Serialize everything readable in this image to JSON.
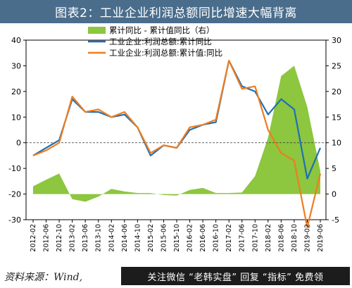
{
  "page": {
    "title": "图表2：工业企业利润总额同比增速大幅背离",
    "source": "资料来源：Wind,",
    "promo": "关注微信 “老韩实盘” 回复 “指标” 免费领"
  },
  "colors": {
    "area": "#8dc63f",
    "yoy": "#1f6fb5",
    "cum": "#ee7d1f",
    "title_bg": "#4a6d8c"
  },
  "chart_data": {
    "type": "line",
    "x": [
      "2012-02",
      "2012-06",
      "2012-10",
      "2013-02",
      "2013-06",
      "2013-10",
      "2014-02",
      "2014-06",
      "2014-10",
      "2015-02",
      "2015-06",
      "2015-10",
      "2016-02",
      "2016-06",
      "2016-10",
      "2017-02",
      "2017-06",
      "2017-10",
      "2018-02",
      "2018-06",
      "2018-10",
      "2019-02",
      "2019-06"
    ],
    "ylim_left": [
      -30,
      40
    ],
    "ylim_right": [
      -5,
      30
    ],
    "yticks_left": [
      -30,
      -20,
      -10,
      0,
      10,
      20,
      30,
      40
    ],
    "yticks_right": [
      -5,
      0,
      5,
      10,
      15,
      20,
      25,
      30
    ],
    "legend": {
      "position": "top"
    },
    "series": [
      {
        "name": "累计同比 - 累计值同比（右）",
        "kind": "area",
        "axis": "right",
        "values": [
          1.5,
          2.8,
          4,
          -1,
          -1.5,
          -0.5,
          1,
          0.5,
          0.2,
          0.2,
          -0.2,
          -0.3,
          0.8,
          1.2,
          0.2,
          0.2,
          0.3,
          3.5,
          11,
          23,
          25,
          17,
          4.5
        ]
      },
      {
        "name": "工业企业:利润总额:累计同比",
        "kind": "line",
        "axis": "left",
        "values": [
          -5,
          -2,
          1,
          17,
          12,
          12,
          10,
          11,
          6,
          -5,
          -1,
          -2,
          5,
          7,
          8,
          32,
          22,
          20,
          11,
          17,
          13,
          -14,
          -2
        ]
      },
      {
        "name": "工业企业:利润总额:累计值:同比",
        "kind": "line",
        "axis": "left",
        "values": [
          -5,
          -3,
          0,
          18,
          12,
          13,
          10,
          12,
          6,
          -4,
          -1,
          -2,
          6,
          7,
          9,
          32,
          21,
          22,
          5,
          -4,
          -7,
          -33,
          -12
        ]
      }
    ]
  }
}
